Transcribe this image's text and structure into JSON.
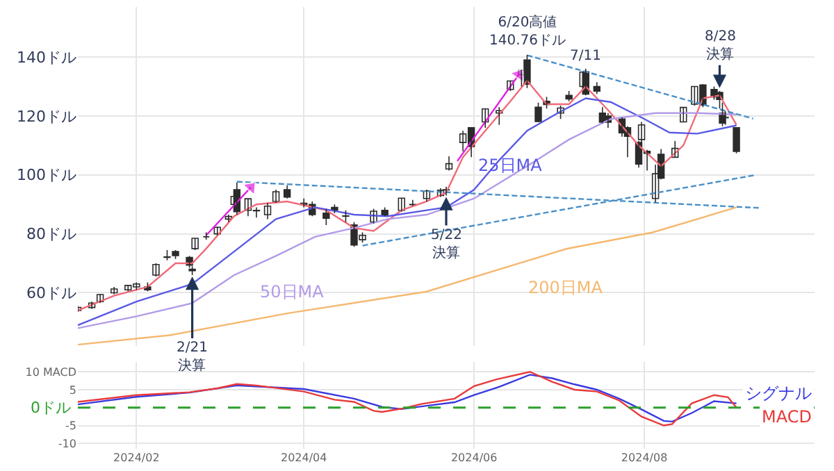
{
  "chart_data": [
    {
      "type": "candlestick",
      "color": "#2b2b2b",
      "grid": true,
      "tick_labels": "y",
      "x": [
        "2024-01-11",
        "2024-01-16",
        "2024-01-19",
        "2024-01-24",
        "2024-01-29",
        "2024-02-01",
        "2024-02-05",
        "2024-02-08",
        "2024-02-12",
        "2024-02-15",
        "2024-02-20",
        "2024-02-21",
        "2024-02-22",
        "2024-02-26",
        "2024-03-01",
        "2024-03-05",
        "2024-03-07",
        "2024-03-08",
        "2024-03-12",
        "2024-03-15",
        "2024-03-19",
        "2024-03-22",
        "2024-03-26",
        "2024-04-01",
        "2024-04-04",
        "2024-04-09",
        "2024-04-12",
        "2024-04-16",
        "2024-04-19",
        "2024-04-22",
        "2024-04-26",
        "2024-04-30",
        "2024-05-06",
        "2024-05-10",
        "2024-05-15",
        "2024-05-20",
        "2024-05-22",
        "2024-05-23",
        "2024-05-28",
        "2024-05-31",
        "2024-06-05",
        "2024-06-10",
        "2024-06-14",
        "2024-06-18",
        "2024-06-20",
        "2024-06-24",
        "2024-06-27",
        "2024-07-02",
        "2024-07-05",
        "2024-07-10",
        "2024-07-11",
        "2024-07-15",
        "2024-07-17",
        "2024-07-19",
        "2024-07-24",
        "2024-07-26",
        "2024-07-30",
        "2024-07-31",
        "2024-08-02",
        "2024-08-05",
        "2024-08-07",
        "2024-08-12",
        "2024-08-15",
        "2024-08-19",
        "2024-08-22",
        "2024-08-26",
        "2024-08-28",
        "2024-08-29",
        "2024-08-30",
        "2024-09-03"
      ],
      "ohlc": [
        [
          54,
          55.5,
          53.5,
          55
        ],
        [
          55,
          57,
          54.5,
          56.5
        ],
        [
          57,
          59.5,
          56.5,
          59.4
        ],
        [
          60,
          62,
          59.5,
          61.3
        ],
        [
          61,
          62.5,
          60.5,
          62.5
        ],
        [
          62,
          63.5,
          61,
          63
        ],
        [
          62,
          63.5,
          60.5,
          61
        ],
        [
          66,
          70,
          65.5,
          69.6
        ],
        [
          72,
          74.5,
          71,
          72.2
        ],
        [
          74,
          74.5,
          71.5,
          72.6
        ],
        [
          72,
          72.5,
          68.5,
          69.4
        ],
        [
          68,
          69,
          66,
          67.5
        ],
        [
          75,
          78.5,
          74.5,
          78.5
        ],
        [
          79,
          80.5,
          78,
          79
        ],
        [
          80,
          82.5,
          79.5,
          82.2
        ],
        [
          85,
          86.5,
          84,
          85.9
        ],
        [
          90,
          93,
          89.5,
          92.7
        ],
        [
          95,
          97.4,
          86.5,
          87.5
        ],
        [
          88,
          92,
          86,
          91.9
        ],
        [
          88,
          89,
          85.5,
          87.8
        ],
        [
          86.5,
          90.5,
          85,
          89.4
        ],
        [
          91,
          95,
          90.5,
          94.3
        ],
        [
          95,
          96.5,
          92,
          92.5
        ],
        [
          90,
          92,
          89,
          90.4
        ],
        [
          90,
          91,
          86,
          86.5
        ],
        [
          87,
          88.5,
          83,
          85.3
        ],
        [
          89,
          90,
          87,
          88
        ],
        [
          86,
          88,
          84,
          86.1
        ],
        [
          83,
          84,
          75.6,
          76.2
        ],
        [
          78,
          80.5,
          77,
          79.5
        ],
        [
          84,
          88.5,
          83.5,
          87.7
        ],
        [
          88,
          89,
          86,
          86.4
        ],
        [
          88,
          92.2,
          87.5,
          92.1
        ],
        [
          90,
          91.5,
          89.5,
          89.9
        ],
        [
          92,
          95,
          91,
          94.6
        ],
        [
          93,
          95.5,
          92.5,
          94.8
        ],
        [
          95,
          96,
          93,
          94.9
        ],
        [
          102,
          106.3,
          101.5,
          103.8
        ],
        [
          111,
          115,
          108,
          113.9
        ],
        [
          116,
          116,
          106,
          109.6
        ],
        [
          118,
          122.5,
          116,
          122.4
        ],
        [
          121,
          123,
          117,
          121.8
        ],
        [
          129,
          132,
          128.5,
          131.9
        ],
        [
          134,
          135.6,
          130,
          135.6
        ],
        [
          139,
          140.76,
          129.5,
          130.8
        ],
        [
          123,
          124.5,
          118,
          118.1
        ],
        [
          125,
          126.5,
          122.5,
          123.9
        ],
        [
          121,
          123.5,
          119,
          122.7
        ],
        [
          127,
          128.5,
          125,
          125.8
        ],
        [
          130,
          135,
          129.5,
          134.9
        ],
        [
          135,
          136,
          127,
          127.4
        ],
        [
          130,
          131.5,
          127.5,
          128.4
        ],
        [
          121,
          123,
          117.5,
          117.9
        ],
        [
          120,
          121,
          116,
          117.9
        ],
        [
          119,
          119.5,
          113,
          114.3
        ],
        [
          116,
          116.5,
          106,
          113.1
        ],
        [
          111,
          111.5,
          102.5,
          103.7
        ],
        [
          112,
          118,
          111,
          117
        ],
        [
          108,
          108.5,
          101.5,
          107.3
        ],
        [
          92,
          103.5,
          90.7,
          100.4
        ],
        [
          107,
          108.8,
          98.5,
          98.9
        ],
        [
          106,
          111.5,
          106,
          109
        ],
        [
          118,
          123,
          118,
          122.9
        ],
        [
          124,
          130,
          123.5,
          130
        ],
        [
          130.5,
          130.8,
          123,
          123.7
        ],
        [
          129,
          130,
          125.5,
          126.5
        ],
        [
          128,
          128.5,
          122.5,
          125.6
        ],
        [
          121,
          124.5,
          116.5,
          117.6
        ],
        [
          119.5,
          121.7,
          117,
          119.4
        ],
        [
          116,
          116,
          107.3,
          108
        ]
      ],
      "series": [
        {
          "type": "line",
          "color": "#f06a78",
          "x": [
            "2024-01-11",
            "2024-01-24",
            "2024-02-05",
            "2024-02-15",
            "2024-02-21",
            "2024-02-26",
            "2024-03-07",
            "2024-03-15",
            "2024-03-26",
            "2024-04-09",
            "2024-04-19",
            "2024-04-26",
            "2024-05-06",
            "2024-05-15",
            "2024-05-22",
            "2024-05-28",
            "2024-06-05",
            "2024-06-14",
            "2024-06-20",
            "2024-06-27",
            "2024-07-05",
            "2024-07-11",
            "2024-07-19",
            "2024-07-30",
            "2024-08-07",
            "2024-08-15",
            "2024-08-22",
            "2024-08-28",
            "2024-09-03"
          ],
          "values": [
            54,
            59,
            62,
            70,
            70,
            75,
            86,
            90,
            91,
            88,
            82,
            81,
            88,
            91,
            94,
            106,
            115,
            125,
            132,
            124,
            124,
            130,
            122,
            110,
            103,
            110,
            126,
            127,
            117
          ]
        },
        {
          "type": "line",
          "name": "25日MA",
          "color": "#5a5ae6",
          "x": [
            "2024-01-11",
            "2024-02-01",
            "2024-02-21",
            "2024-03-07",
            "2024-03-22",
            "2024-04-05",
            "2024-04-19",
            "2024-05-01",
            "2024-05-15",
            "2024-05-22",
            "2024-06-01",
            "2024-06-10",
            "2024-06-20",
            "2024-07-01",
            "2024-07-11",
            "2024-07-20",
            "2024-08-01",
            "2024-08-10",
            "2024-08-20",
            "2024-09-03"
          ],
          "values": [
            49,
            57,
            63,
            74,
            85,
            89,
            86.5,
            86,
            88,
            89,
            95,
            105,
            115,
            121,
            126,
            124.7,
            119,
            114.4,
            114,
            116.8
          ]
        },
        {
          "type": "line",
          "name": "50日MA",
          "color": "#b39be8",
          "x": [
            "2024-01-11",
            "2024-02-01",
            "2024-02-21",
            "2024-03-07",
            "2024-03-22",
            "2024-04-05",
            "2024-04-19",
            "2024-05-01",
            "2024-05-15",
            "2024-06-01",
            "2024-06-20",
            "2024-07-05",
            "2024-07-20",
            "2024-08-05",
            "2024-08-20",
            "2024-09-03"
          ],
          "values": [
            48,
            52,
            56.5,
            66,
            72.5,
            79,
            82,
            85,
            86.5,
            92,
            103,
            112,
            119,
            121,
            121,
            120.5
          ]
        },
        {
          "type": "line",
          "name": "200日MA",
          "color": "#f5b870",
          "x": [
            "2024-01-11",
            "2024-02-13",
            "2024-03-26",
            "2024-05-15",
            "2024-07-04",
            "2024-08-04",
            "2024-09-03"
          ],
          "values": [
            42.4,
            45.6,
            53,
            60.4,
            74.9,
            80.5,
            89
          ]
        },
        {
          "type": "line",
          "color": "#4a90c8",
          "line_style": "dashed",
          "x": [
            "2024-03-08",
            "2024-09-11"
          ],
          "values": [
            97.7,
            88.8
          ]
        },
        {
          "type": "line",
          "color": "#4a90c8",
          "line_style": "dashed",
          "x": [
            "2024-04-22",
            "2024-09-10"
          ],
          "values": [
            76,
            100
          ]
        },
        {
          "type": "line",
          "color": "#4a90c8",
          "line_style": "dashed",
          "x": [
            "2024-06-20",
            "2024-09-09"
          ],
          "values": [
            140.6,
            119.1
          ]
        },
        {
          "type": "line",
          "color": "#e020e0",
          "marker": "triangle",
          "x": [
            "2024-02-26",
            "2024-03-13"
          ],
          "values": [
            79.5,
            95.8
          ]
        },
        {
          "type": "line",
          "color": "#e020e0",
          "marker": "triangle",
          "x": [
            "2024-05-26",
            "2024-06-17"
          ],
          "values": [
            104.7,
            134
          ]
        }
      ],
      "annotations": [
        {
          "text": "2/21\n決算",
          "x": "2024-02-21",
          "y": 65.5
        },
        {
          "text": "5/22\n決算",
          "x": "2024-05-22",
          "y": 92.5
        },
        {
          "text": "6/20高値\n140.76ドル",
          "x": "2024-06-20",
          "y": 140.76
        },
        {
          "text": "7/11",
          "x": "2024-07-11",
          "y": 136
        },
        {
          "text": "8/28\n決算",
          "x": "2024-08-28",
          "y": 129.5
        }
      ],
      "xlim": [
        "2024-01-11",
        "2024-10-01"
      ],
      "xticks": [
        {
          "value": "2024-02-01",
          "label": null
        },
        {
          "value": "2024-04-01",
          "label": null
        },
        {
          "value": "2024-06-01",
          "label": null
        },
        {
          "value": "2024-08-01",
          "label": null
        }
      ],
      "ylim": [
        42,
        157
      ],
      "yticks": [
        {
          "value": 60,
          "label": "60ドル"
        },
        {
          "value": 80,
          "label": "80ドル"
        },
        {
          "value": 100,
          "label": "100ドル"
        },
        {
          "value": 120,
          "label": "120ドル"
        },
        {
          "value": 140,
          "label": "140ドル"
        }
      ]
    },
    {
      "type": "line",
      "grid": true,
      "series": [
        {
          "name": "シグナル",
          "color": "#3a3ae0",
          "x": [
            "2024-01-11",
            "2024-02-01",
            "2024-02-20",
            "2024-03-08",
            "2024-04-01",
            "2024-04-19",
            "2024-04-29",
            "2024-05-06",
            "2024-05-15",
            "2024-05-25",
            "2024-06-01",
            "2024-06-10",
            "2024-06-21",
            "2024-06-29",
            "2024-07-07",
            "2024-07-15",
            "2024-07-23",
            "2024-07-31",
            "2024-08-08",
            "2024-08-11",
            "2024-08-18",
            "2024-08-26",
            "2024-09-03"
          ],
          "values": [
            0.9,
            3,
            4.2,
            6.2,
            5.2,
            2.5,
            0.2,
            -0.4,
            0.5,
            1.5,
            3.5,
            5.8,
            9.2,
            8.2,
            6.5,
            5,
            2.5,
            -0.5,
            -3.7,
            -3.9,
            -1.5,
            1.8,
            1.2
          ]
        },
        {
          "name": "MACD",
          "color": "#e83a3a",
          "x": [
            "2024-01-11",
            "2024-02-01",
            "2024-02-20",
            "2024-03-01",
            "2024-03-08",
            "2024-03-15",
            "2024-04-01",
            "2024-04-12",
            "2024-04-19",
            "2024-04-26",
            "2024-04-29",
            "2024-05-06",
            "2024-05-13",
            "2024-05-25",
            "2024-06-01",
            "2024-06-09",
            "2024-06-21",
            "2024-06-29",
            "2024-07-07",
            "2024-07-15",
            "2024-07-23",
            "2024-07-31",
            "2024-08-08",
            "2024-08-11",
            "2024-08-18",
            "2024-08-26",
            "2024-08-31",
            "2024-09-03"
          ],
          "values": [
            1.6,
            3.5,
            4.3,
            5.4,
            6.6,
            6.2,
            4.5,
            2.2,
            1.6,
            -0.9,
            -1.2,
            -0.3,
            1,
            2.5,
            6,
            7.9,
            10,
            7.2,
            5,
            4.5,
            2,
            -2.5,
            -5,
            -4.6,
            1.2,
            3.5,
            2.9,
            0
          ]
        }
      ],
      "ref_lines": [
        {
          "axis": "y",
          "value": 0,
          "label": "0ドル",
          "color": "#2ca02c",
          "line_style": "dashed"
        }
      ],
      "xlim": [
        "2024-01-11",
        "2024-10-01"
      ],
      "xticks": [
        {
          "value": "2024-02-01",
          "label": "2024/02"
        },
        {
          "value": "2024-04-01",
          "label": "2024/04"
        },
        {
          "value": "2024-06-01",
          "label": "2024/06"
        },
        {
          "value": "2024-08-01",
          "label": "2024/08"
        }
      ],
      "ylim": [
        -11.5,
        12.7
      ],
      "yticks": [
        {
          "value": 10,
          "label": "10 MACD"
        },
        5,
        -5,
        -10
      ]
    }
  ]
}
